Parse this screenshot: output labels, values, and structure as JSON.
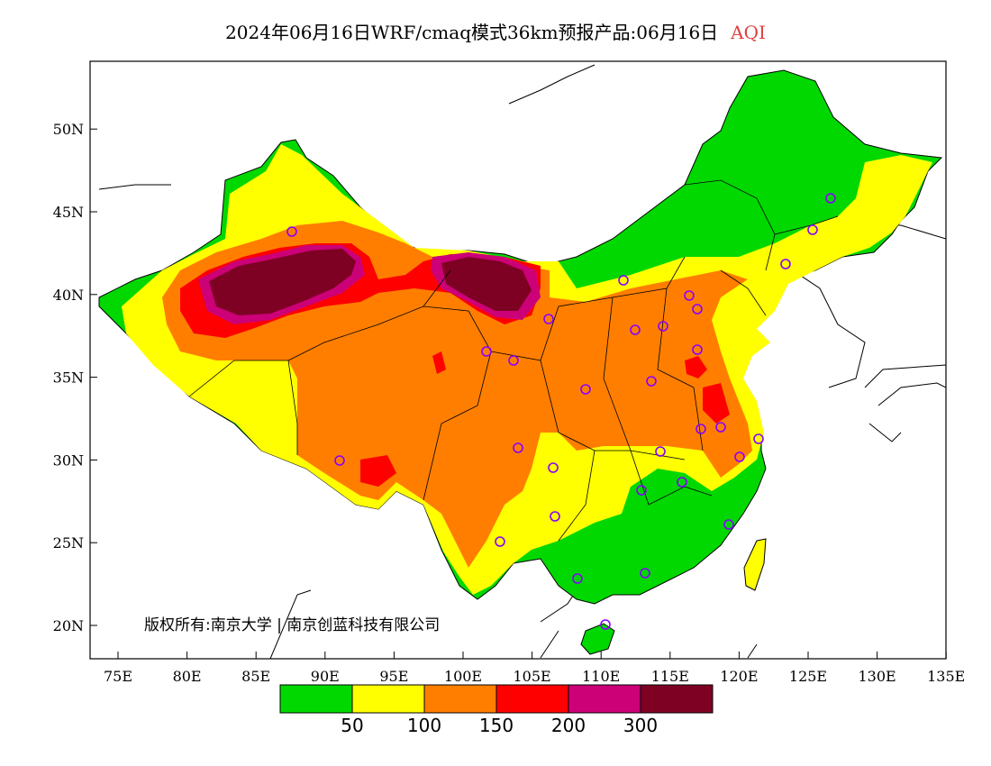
{
  "title": {
    "main": "2024年06月16日WRF/cmaq模式36km预报产品:06月16日",
    "product": "AQI"
  },
  "copyright": "版权所有:南京大学 | 南京创蓝科技有限公司",
  "axes": {
    "lon_ticks": [
      "75E",
      "80E",
      "85E",
      "90E",
      "95E",
      "100E",
      "105E",
      "110E",
      "115E",
      "120E",
      "125E",
      "130E",
      "135E"
    ],
    "lat_ticks": [
      "20N",
      "25N",
      "30N",
      "35N",
      "40N",
      "45N",
      "50N"
    ]
  },
  "legend": {
    "colors": [
      "#00d800",
      "#ffff00",
      "#ff7e00",
      "#ff0000",
      "#cc0077",
      "#7e0023"
    ],
    "labels": [
      "50",
      "100",
      "150",
      "200",
      "300"
    ]
  },
  "aqi_colors": {
    "good": "#00d800",
    "moderate": "#ffff00",
    "usg": "#ff7e00",
    "unhealthy": "#ff0000",
    "very_unhealthy": "#cc0077",
    "hazardous": "#7e0023"
  },
  "stations_marker_color": "#8800ff"
}
